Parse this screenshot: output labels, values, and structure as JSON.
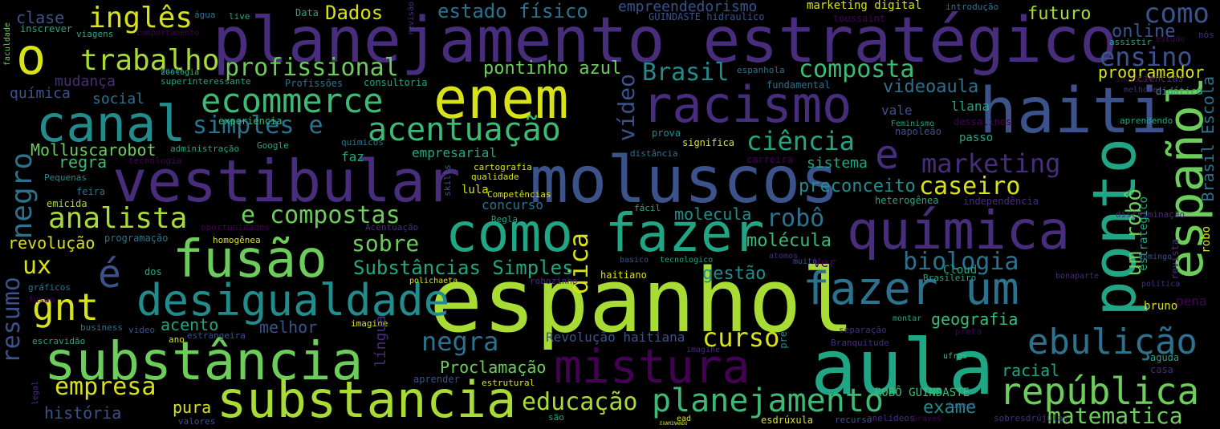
{
  "palette": {
    "background": "#000000",
    "yellow": "#d8e219",
    "lime": "#a8db34",
    "green": "#6ccd5a",
    "mint": "#3bbb75",
    "teal": "#21a685",
    "cyan": "#228c8d",
    "blue": "#2c728e",
    "indigo": "#3b528b",
    "violet": "#472d7b",
    "purple": "#440154"
  },
  "words": [
    "planejamento estratégico",
    "espanhol",
    "aula",
    "moluscos",
    "vestibular",
    "enem",
    "haiti",
    "racismo",
    "ponto",
    "química",
    "como fazer",
    "fusão",
    "substância",
    "substancia",
    "mistura",
    "canal",
    "desigualdade",
    "fazer um",
    "ecommerce",
    "o",
    "español",
    "é",
    "gnt",
    "república",
    "ebulição",
    "acentuação",
    "planejamento",
    "inglês",
    "trabalho",
    "analista",
    "e",
    "negro",
    "simples e",
    "e compostas",
    "marketing",
    "ciência",
    "curso",
    "biologia",
    "educação",
    "empresa",
    "matematica",
    "estado físico",
    "Dados",
    "como",
    "profissional",
    "composta",
    "Brasil",
    "dica",
    "vídeo",
    "caseiro",
    "robô",
    "negra",
    "sobre",
    "Substâncias Simples",
    "ux",
    "resumo",
    "um robô",
    "Brasil Escola",
    "ensino",
    "online",
    "futuro",
    "programador",
    "videoaula",
    "pontinho azul",
    "Molluscarobot",
    "regra",
    "sistema",
    "preconceito",
    "molecula",
    "molécula",
    "gestão",
    "geografia",
    "acento",
    "melhor",
    "racial",
    "exame",
    "Proclamação",
    "pura",
    "história",
    "revolução",
    "mudança",
    "química",
    "social",
    "empreendedorismo",
    "clase",
    "marketing digital",
    "Revolução haitiana",
    "ROBÔ GUINDASTE",
    "empresarial",
    "significa",
    "vale",
    "llana",
    "passo",
    "faz",
    "concurso",
    "lula",
    "Ver",
    "Cloud",
    "bruno",
    "pena",
    "aguda",
    "casa",
    "robo",
    "estrategico",
    "revista",
    "ciencias",
    "didático",
    "melhores",
    "aprendendo",
    "incrivel",
    "dessalines",
    "napoleão",
    "Feminismo",
    "independência",
    "discriminação",
    "domingo",
    "política",
    "bonaparte",
    "Brasileiro",
    "muito",
    "atomos",
    "heterogênea",
    "fácil",
    "basico",
    "tecnologico",
    "carreira",
    "distância",
    "prova",
    "fundamental",
    "espanhola",
    "GUINDASTE hidraulico",
    "toussaint",
    "introdução",
    "assistir",
    "estudo",
    "nós",
    "faculdade",
    "inscrever",
    "viagens",
    "comportamento",
    "live",
    "água",
    "Data",
    "revisão",
    "geral",
    "superinteressante",
    "Profissões",
    "consultoria",
    "administração",
    "Google",
    "químicos",
    "tecnologia",
    "Pequenas",
    "feira",
    "emicida",
    "oportunidades",
    "Acentuação",
    "programação",
    "homogênea",
    "dos",
    "gráficos",
    "fusao",
    "business",
    "video",
    "imagine",
    "ano",
    "estrangeira",
    "escravidão",
    "legal",
    "valores",
    "aprender",
    "estrutural",
    "língua",
    "polichaeta",
    "robozinho",
    "haitiano",
    "imagine",
    "Branquitude",
    "separação",
    "montar",
    "preta",
    "ufrgs",
    "pré",
    "esdrúxula",
    "anelídeos",
    "Graves",
    "fuvest",
    "sobresdrújulas",
    "recurso",
    "ead",
    "EXAMINANDO",
    "são",
    "experiencia",
    "Regla",
    "cartografia",
    "qualidade",
    "Competências",
    "skills",
    "zoologia",
    "geral",
    "mudança"
  ]
}
